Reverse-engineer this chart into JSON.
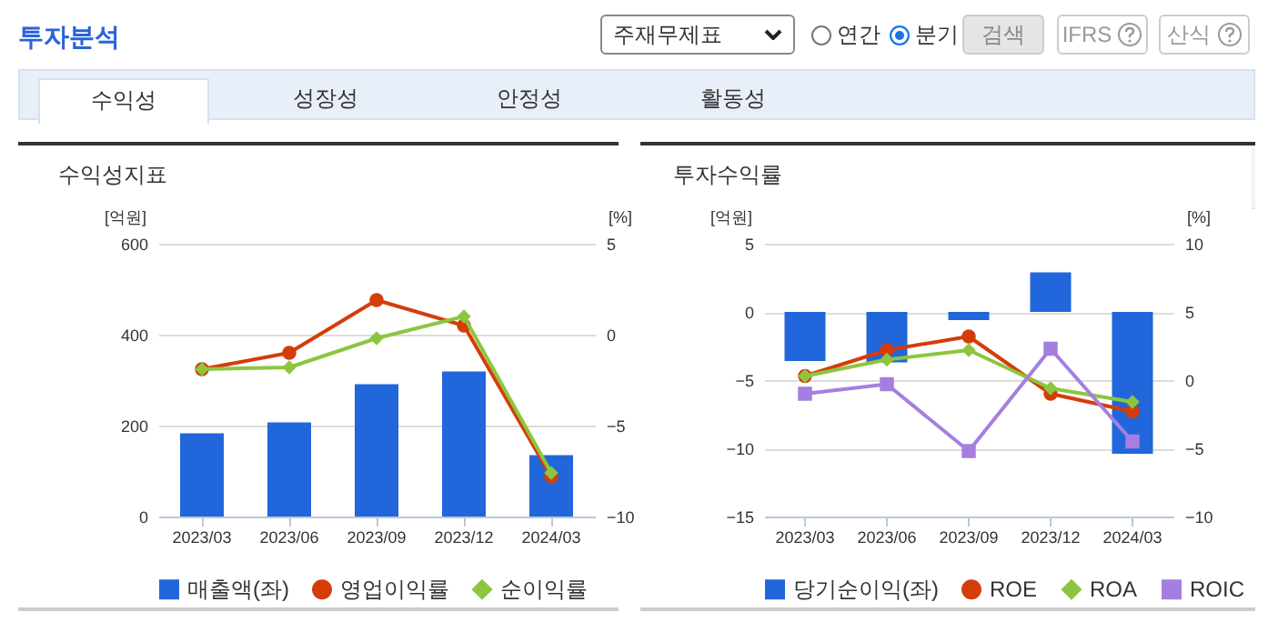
{
  "chart_data": [
    {
      "type": "other",
      "title": "투자분석",
      "annotations": [
        "주재무제표",
        "연간",
        "분기",
        "검색",
        "IFRS",
        "산식",
        "수익성",
        "성장성",
        "안정성",
        "활동성"
      ]
    },
    {
      "type": "bar",
      "title": "수익성지표",
      "ylabel": "[억원]",
      "y2label": "[%]",
      "categories": [
        "2023/03",
        "2023/06",
        "2023/09",
        "2023/12",
        "2024/03"
      ],
      "series": [
        {
          "name": "매출액(좌)",
          "type": "bar",
          "color": "#2166db",
          "values": [
            183,
            207,
            291,
            319,
            135
          ]
        },
        {
          "name": "영업이익률",
          "type": "line",
          "axis": "y2",
          "marker": "circle",
          "color": "#d43d0a",
          "values": [
            -1.9,
            -1.0,
            1.9,
            0.5,
            -7.8
          ]
        },
        {
          "name": "순이익률",
          "type": "line",
          "axis": "y2",
          "marker": "diamond",
          "color": "#8cc63f",
          "values": [
            -1.9,
            -1.8,
            -0.2,
            1.0,
            -7.6
          ]
        }
      ],
      "ylim": [
        0,
        600
      ],
      "yticks": [
        0,
        200,
        400,
        600
      ],
      "y2lim": [
        -10,
        5
      ],
      "y2ticks": [
        -10,
        -5,
        0,
        5
      ],
      "grid": "y",
      "legend": "bottom"
    },
    {
      "type": "bar",
      "title": "투자수익률",
      "ylabel": "[억원]",
      "y2label": "[%]",
      "categories": [
        "2023/03",
        "2023/06",
        "2023/09",
        "2023/12",
        "2024/03"
      ],
      "series": [
        {
          "name": "당기순이익(좌)",
          "type": "bar",
          "color": "#2166db",
          "values": [
            -3.6,
            -3.7,
            -0.6,
            2.9,
            -10.4
          ]
        },
        {
          "name": "ROE",
          "type": "line",
          "axis": "y2",
          "marker": "circle",
          "color": "#d43d0a",
          "values": [
            0.3,
            2.2,
            3.2,
            -1.0,
            -2.3
          ]
        },
        {
          "name": "ROA",
          "type": "line",
          "axis": "y2",
          "marker": "diamond",
          "color": "#8cc63f",
          "values": [
            0.3,
            1.5,
            2.2,
            -0.6,
            -1.6
          ]
        },
        {
          "name": "ROIC",
          "type": "line",
          "axis": "y2",
          "marker": "square",
          "color": "#a57fe0",
          "values": [
            -1.0,
            -0.3,
            -5.2,
            2.3,
            -4.5
          ]
        }
      ],
      "ylim": [
        -15,
        5
      ],
      "yticks": [
        -15,
        -10,
        -5,
        0,
        5
      ],
      "y2lim": [
        -10,
        10
      ],
      "y2ticks": [
        -10,
        -5,
        0,
        5,
        10
      ],
      "grid": "y",
      "legend": "bottom"
    }
  ]
}
